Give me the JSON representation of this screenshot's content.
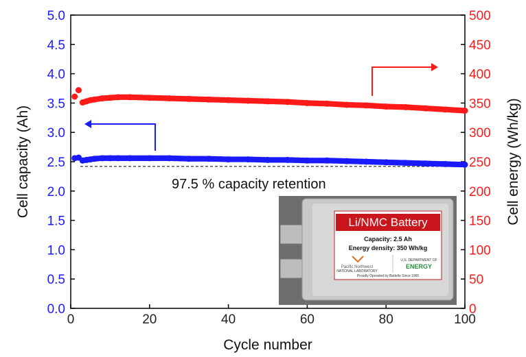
{
  "chart_data": {
    "type": "scatter",
    "xlabel": "Cycle number",
    "ylabel_left": "Cell capacity (Ah)",
    "ylabel_right": "Cell energy (Wh/kg)",
    "xlim": [
      0,
      100
    ],
    "ylim_left": [
      0.0,
      5.0
    ],
    "ylim_right": [
      0,
      500
    ],
    "x_ticks": [
      "0",
      "20",
      "40",
      "60",
      "80",
      "100"
    ],
    "y_left_ticks": [
      "0.0",
      "0.5",
      "1.0",
      "1.5",
      "2.0",
      "2.5",
      "3.0",
      "3.5",
      "4.0",
      "4.5",
      "5.0"
    ],
    "y_right_ticks": [
      "0",
      "50",
      "100",
      "150",
      "200",
      "250",
      "300",
      "350",
      "400",
      "450",
      "500"
    ],
    "grid": false,
    "annotation": "97.5 % capacity retention",
    "reference_line_capacity": 2.42,
    "series": [
      {
        "axis": "left",
        "color": "#1a1aff",
        "x": [
          1,
          2,
          3,
          4,
          5,
          6,
          8,
          10,
          12,
          15,
          20,
          25,
          30,
          35,
          40,
          45,
          50,
          55,
          60,
          65,
          70,
          75,
          80,
          85,
          90,
          95,
          100
        ],
        "y": [
          2.56,
          2.57,
          2.52,
          2.53,
          2.54,
          2.55,
          2.56,
          2.56,
          2.56,
          2.56,
          2.56,
          2.56,
          2.55,
          2.55,
          2.54,
          2.54,
          2.53,
          2.53,
          2.52,
          2.52,
          2.51,
          2.5,
          2.49,
          2.48,
          2.47,
          2.46,
          2.45
        ]
      },
      {
        "axis": "right",
        "color": "#ff1a1a",
        "x": [
          1,
          2,
          3,
          4,
          5,
          6,
          8,
          10,
          12,
          15,
          20,
          25,
          30,
          35,
          40,
          45,
          50,
          55,
          60,
          65,
          70,
          75,
          80,
          85,
          90,
          95,
          100
        ],
        "y": [
          361,
          372,
          351,
          353,
          355,
          356,
          358,
          359,
          360,
          360,
          359,
          358,
          357,
          356,
          355,
          354,
          353,
          352,
          350,
          349,
          347,
          346,
          344,
          343,
          341,
          339,
          337
        ]
      }
    ]
  },
  "inset": {
    "title": "Li/NMC Battery",
    "capacity": "Capacity:  2.5 Ah",
    "energy_density": "Energy density:  350 Wh/kg",
    "brand": "Pacific Northwest",
    "brand_sub": "NATIONAL LABORATORY",
    "partner": "U.S. DEPARTMENT OF",
    "partner_name": "ENERGY",
    "footer": "Proudly Operated by Battelle Since 1965"
  }
}
